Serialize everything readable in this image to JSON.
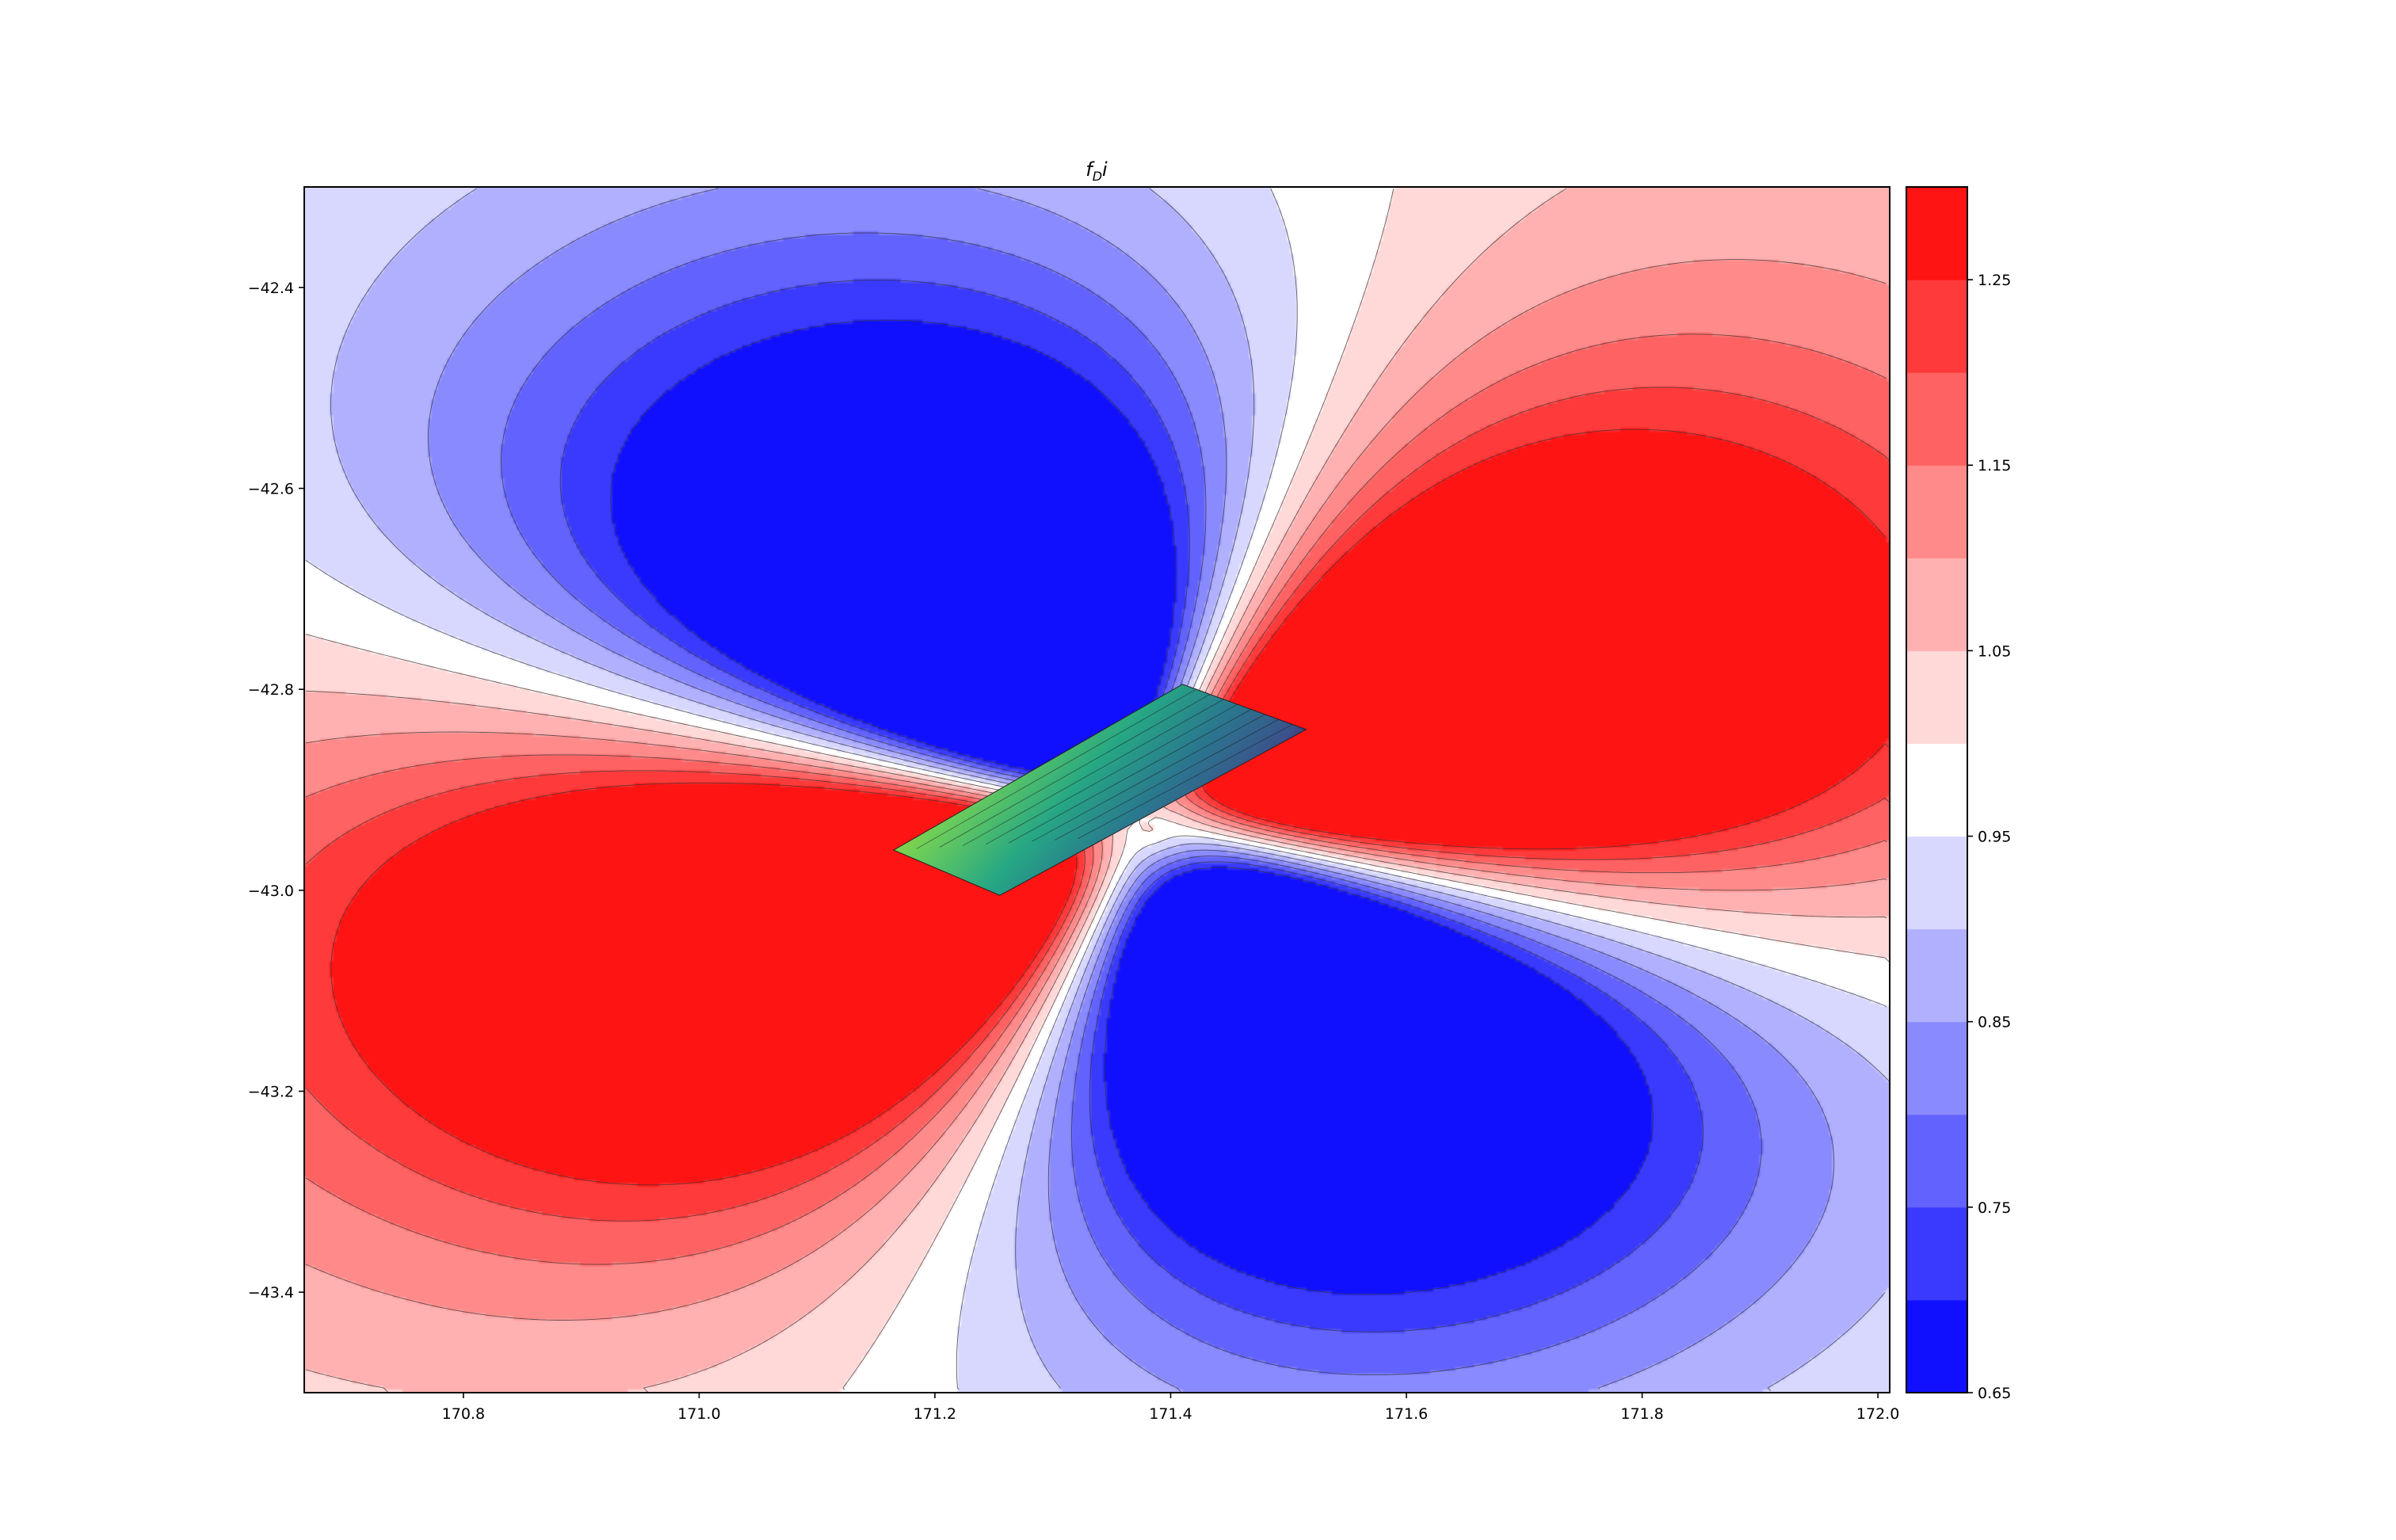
{
  "chart_data": {
    "type": "contour",
    "title_main": "f",
    "title_sub": "D",
    "title_tail": "i",
    "xlim": [
      170.665,
      172.01
    ],
    "ylim": [
      -43.5,
      -42.3
    ],
    "xticks": [
      170.8,
      171.0,
      171.2,
      171.4,
      171.6,
      171.8,
      172.0
    ],
    "xtick_labels": [
      "170.8",
      "171.0",
      "171.2",
      "171.4",
      "171.6",
      "171.8",
      "172.0"
    ],
    "yticks": [
      -42.4,
      -42.6,
      -42.8,
      -43.0,
      -43.2,
      -43.4
    ],
    "ytick_labels": [
      "−42.4",
      "−42.6",
      "−42.8",
      "−43.0",
      "−43.2",
      "−43.4"
    ],
    "colorbar": {
      "levels": [
        0.65,
        0.7,
        0.75,
        0.8,
        0.85,
        0.9,
        0.95,
        1.0,
        1.05,
        1.1,
        1.15,
        1.2,
        1.25,
        1.3
      ],
      "colors": [
        "#1010ff",
        "#3a3aff",
        "#6262ff",
        "#8a8aff",
        "#b0b0ff",
        "#d8d8ff",
        "#ffffff",
        "#ffd8d8",
        "#ffb0b0",
        "#ff8a8a",
        "#ff6262",
        "#ff3a3a",
        "#ff1414"
      ],
      "tick_values": [
        0.65,
        0.75,
        0.85,
        0.95,
        1.05,
        1.15,
        1.25
      ],
      "tick_labels": [
        "0.65",
        "0.75",
        "0.85",
        "0.95",
        "1.05",
        "1.15",
        "1.25"
      ]
    },
    "field": {
      "description_type": "quadrupole",
      "center": [
        171.375,
        -42.93
      ],
      "strike_axis_deg": 28,
      "gain_color": "#ff1414",
      "loss_color": "#1010ff"
    },
    "fault_patch": {
      "corners": [
        [
          171.165,
          -42.96
        ],
        [
          171.41,
          -42.795
        ],
        [
          171.515,
          -42.84
        ],
        [
          171.255,
          -43.005
        ]
      ],
      "colormap": [
        "#fde725",
        "#90d743",
        "#35b779",
        "#21918c",
        "#31688e",
        "#443983",
        "#440154"
      ]
    },
    "grid": false,
    "legend": "none"
  }
}
